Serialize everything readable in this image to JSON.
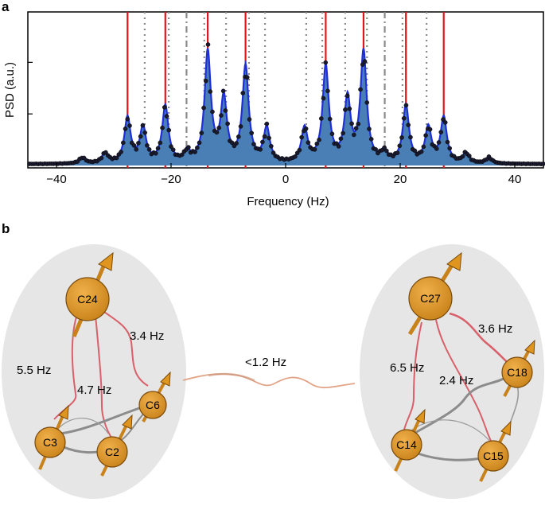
{
  "figure": {
    "panel_a_label": "a",
    "panel_b_label": "b"
  },
  "colors": {
    "spectrum_fill": "#4a7fb5",
    "spectrum_line": "#1f2fd8",
    "marker_line": "#e0161b",
    "dotted_line": "#8a8a8a",
    "molecule_bg": "#e6e6e6",
    "node_fill": "#d9901f",
    "coupling_red": "#d9606a",
    "coupling_grey": "#8c8c8c"
  },
  "chart_data": {
    "type": "line",
    "title": "",
    "xlabel": "Frequency (Hz)",
    "ylabel": "PSD (a.u.)",
    "xlim": [
      -45,
      45
    ],
    "x_ticks": [
      -40,
      -20,
      0,
      20,
      40
    ],
    "x_tick_labels": [
      "−40",
      "−20",
      "0",
      "20",
      "40"
    ],
    "y_ticks_unlabeled": [
      0.5,
      1.0
    ],
    "peaks": [
      {
        "x": -27.6,
        "y": 0.44
      },
      {
        "x": -24.9,
        "y": 0.34
      },
      {
        "x": -21.0,
        "y": 0.55
      },
      {
        "x": -17.2,
        "y": 0.1
      },
      {
        "x": -13.6,
        "y": 1.07
      },
      {
        "x": -10.8,
        "y": 0.61
      },
      {
        "x": -7.0,
        "y": 0.93
      },
      {
        "x": -3.3,
        "y": 0.33
      },
      {
        "x": 3.3,
        "y": 0.33
      },
      {
        "x": 7.0,
        "y": 0.93
      },
      {
        "x": 10.8,
        "y": 0.61
      },
      {
        "x": 13.6,
        "y": 1.07
      },
      {
        "x": 17.2,
        "y": 0.1
      },
      {
        "x": 21.0,
        "y": 0.55
      },
      {
        "x": 24.9,
        "y": 0.34
      },
      {
        "x": 27.6,
        "y": 0.44
      },
      {
        "x": -35.5,
        "y": 0.06
      },
      {
        "x": -31.5,
        "y": 0.1
      },
      {
        "x": 31.5,
        "y": 0.1
      },
      {
        "x": 35.5,
        "y": 0.06
      }
    ],
    "red_lines_x": [
      -27.6,
      -21.0,
      -13.6,
      -7.0,
      7.0,
      13.6,
      21.0,
      27.6
    ],
    "dotted_lines_x": [
      -24.6,
      -20.4,
      -14.2,
      -10.4,
      -6.4,
      -3.6,
      3.6,
      6.4,
      10.4,
      14.2,
      20.4,
      24.6
    ],
    "dashdot_lines_x": [
      -17.3,
      17.3
    ]
  },
  "molecule_left": {
    "nodes": [
      {
        "id": "C24",
        "label": "C24"
      },
      {
        "id": "C6",
        "label": "C6"
      },
      {
        "id": "C3",
        "label": "C3"
      },
      {
        "id": "C2",
        "label": "C2"
      }
    ],
    "couplings": [
      "5.5 Hz",
      "4.7 Hz",
      "3.4 Hz"
    ]
  },
  "molecule_right": {
    "nodes": [
      {
        "id": "C27",
        "label": "C27"
      },
      {
        "id": "C18",
        "label": "C18"
      },
      {
        "id": "C14",
        "label": "C14"
      },
      {
        "id": "C15",
        "label": "C15"
      }
    ],
    "couplings": [
      "6.5 Hz",
      "2.4 Hz",
      "3.6 Hz"
    ]
  },
  "inter_coupling": "<1.2 Hz"
}
